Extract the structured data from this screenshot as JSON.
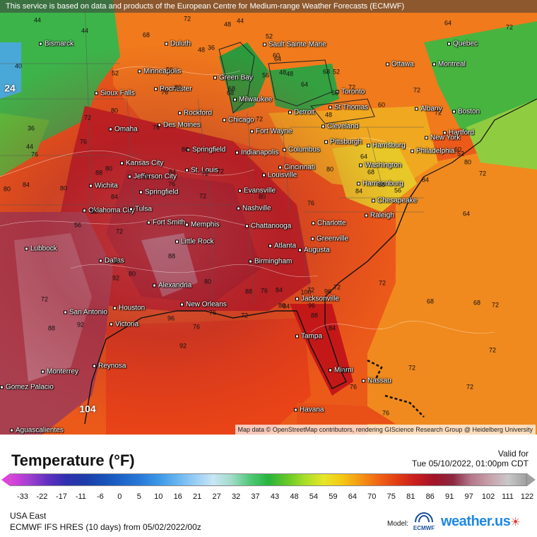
{
  "map": {
    "banner": "This service is based on data and products of the European Centre for Medium-range Weather Forecasts (ECMWF)",
    "attribution": "Map data © OpenStreetMap contributors, rendering GIScience Research Group @ Heidelberg University",
    "cities": [
      {
        "name": "Bismarck"
      },
      {
        "name": "Duluth"
      },
      {
        "name": "Sault Sainte Marie"
      },
      {
        "name": "Quebec"
      },
      {
        "name": "Ottawa"
      },
      {
        "name": "Montreal"
      },
      {
        "name": "Minneapolis"
      },
      {
        "name": "Green Bay"
      },
      {
        "name": "Sioux Falls"
      },
      {
        "name": "Rochester"
      },
      {
        "name": "Milwaukee"
      },
      {
        "name": "Toronto"
      },
      {
        "name": "Albany"
      },
      {
        "name": "Boston"
      },
      {
        "name": "Rockford"
      },
      {
        "name": "Detroit"
      },
      {
        "name": "St Thomas"
      },
      {
        "name": "Omaha"
      },
      {
        "name": "Des Moines"
      },
      {
        "name": "Chicago"
      },
      {
        "name": "Cleveland"
      },
      {
        "name": "Fort Wayne"
      },
      {
        "name": "Hartford"
      },
      {
        "name": "New York"
      },
      {
        "name": "Springfield"
      },
      {
        "name": "Indianapolis"
      },
      {
        "name": "Columbus"
      },
      {
        "name": "Pittsburgh"
      },
      {
        "name": "Harrisburg"
      },
      {
        "name": "Philadelphia"
      },
      {
        "name": "Kansas City"
      },
      {
        "name": "Jefferson City"
      },
      {
        "name": "St. Louis"
      },
      {
        "name": "Cincinnati"
      },
      {
        "name": "Washington"
      },
      {
        "name": "Louisville"
      },
      {
        "name": "Wichita"
      },
      {
        "name": "Springfield"
      },
      {
        "name": "Evansville"
      },
      {
        "name": "Harrisonburg"
      },
      {
        "name": "Chesapeake"
      },
      {
        "name": "Oklahoma City"
      },
      {
        "name": "Tulsa"
      },
      {
        "name": "Nashville"
      },
      {
        "name": "Raleigh"
      },
      {
        "name": "Fort Smith"
      },
      {
        "name": "Memphis"
      },
      {
        "name": "Chattanooga"
      },
      {
        "name": "Charlotte"
      },
      {
        "name": "Little Rock"
      },
      {
        "name": "Greenville"
      },
      {
        "name": "Lubbock"
      },
      {
        "name": "Atlanta"
      },
      {
        "name": "Augusta"
      },
      {
        "name": "Dallas"
      },
      {
        "name": "Birmingham"
      },
      {
        "name": "Alexandria"
      },
      {
        "name": "San Antonio"
      },
      {
        "name": "Houston"
      },
      {
        "name": "New Orleans"
      },
      {
        "name": "Jacksonville"
      },
      {
        "name": "Victoria"
      },
      {
        "name": "Tampa"
      },
      {
        "name": "Monterrey"
      },
      {
        "name": "Reynosa"
      },
      {
        "name": "Miami"
      },
      {
        "name": "Nassau"
      },
      {
        "name": "Gomez Palacio"
      },
      {
        "name": "Havana"
      },
      {
        "name": "Aguascalientes"
      }
    ],
    "contour_labels": [
      "44",
      "68",
      "72",
      "48",
      "44",
      "60",
      "64",
      "72",
      "40",
      "44",
      "52",
      "56",
      "48",
      "36",
      "52",
      "68",
      "48",
      "72",
      "72",
      "72",
      "76",
      "80",
      "68",
      "64",
      "68",
      "60",
      "72",
      "68",
      "64",
      "56",
      "48",
      "52",
      "48",
      "44",
      "36",
      "72",
      "76",
      "80",
      "76",
      "84",
      "72",
      "76",
      "72",
      "64",
      "68",
      "56",
      "52",
      "60",
      "80",
      "76",
      "80",
      "84",
      "80",
      "88",
      "80",
      "76",
      "72",
      "80",
      "84",
      "80",
      "76",
      "80",
      "84",
      "88",
      "84",
      "72",
      "64",
      "56",
      "60",
      "72",
      "68",
      "80",
      "72",
      "88",
      "92",
      "92",
      "88",
      "80",
      "76",
      "84",
      "72",
      "72",
      "72",
      "68",
      "72",
      "68",
      "72",
      "72",
      "72",
      "76",
      "80",
      "76",
      "84",
      "88",
      "96",
      "100",
      "96",
      "80",
      "84",
      "88",
      "96",
      "92",
      "76",
      "72",
      "76"
    ],
    "big_labels": [
      "24",
      "104"
    ]
  },
  "legend": {
    "title": "Temperature (°F)",
    "valid_label": "Valid for",
    "valid_time": "Tue 05/10/2022, 01:00pm CDT",
    "scale": [
      "-33",
      "-22",
      "-17",
      "-11",
      "-6",
      "0",
      "5",
      "10",
      "16",
      "21",
      "27",
      "32",
      "37",
      "43",
      "48",
      "54",
      "59",
      "64",
      "70",
      "75",
      "81",
      "86",
      "91",
      "97",
      "102",
      "111",
      "122"
    ],
    "scale_colors": [
      "#e040e0",
      "#a040d0",
      "#6030c0",
      "#3030b0",
      "#1e3ca8",
      "#1850b8",
      "#1e64c8",
      "#2878d8",
      "#3c96e6",
      "#64b4f0",
      "#96cdf5",
      "#c8e6f5",
      "#a0dcc8",
      "#50c878",
      "#28b43c",
      "#64c828",
      "#aade28",
      "#e6e628",
      "#f5c814",
      "#f59614",
      "#f06414",
      "#e13c14",
      "#c81e1e",
      "#a01428",
      "#8c2840",
      "#b4788c",
      "#c8a0aa",
      "#c8c8c8",
      "#a0a0a0"
    ],
    "region": "USA East",
    "run": "ECMWF IFS HRES (10 days) from 05/02/2022/00z",
    "model_label": "Model:",
    "model_logo": "ECMWF",
    "brand": "weather.us"
  }
}
